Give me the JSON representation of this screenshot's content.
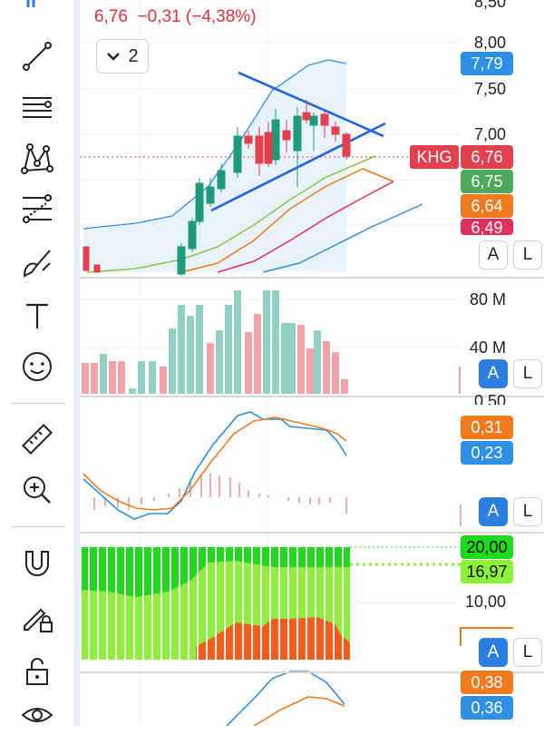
{
  "header": {
    "price": "6,76",
    "change": "−0,31",
    "change_pct": "(−4,38%)"
  },
  "legend": {
    "label": "2",
    "icon": "chevron-down-icon"
  },
  "symbol_tag": "KHG",
  "price_panel": {
    "axis": [
      "8,50",
      "8,00",
      "7,50",
      "7,00"
    ],
    "tags": [
      {
        "text": "7,79",
        "color": "#2f8fe5"
      },
      {
        "text": "6,76",
        "color": "#e2404e"
      },
      {
        "text": "6,75",
        "color": "#4ea85a"
      },
      {
        "text": "6,64",
        "color": "#f07a1e"
      },
      {
        "text": "6,49",
        "color": "#e0305a"
      }
    ]
  },
  "volume_panel": {
    "axis": [
      "80 M",
      "40 M"
    ]
  },
  "macd_panel": {
    "axis": [
      "0,50"
    ],
    "tags": [
      {
        "text": "0,31",
        "color": "#f07a1e"
      },
      {
        "text": "0,23",
        "color": "#2f8fe5"
      }
    ]
  },
  "stoch_panel": {
    "axis": [
      "10,00"
    ],
    "tags": [
      {
        "text": "20,00",
        "color": "#1ed91e"
      },
      {
        "text": "16,97",
        "color": "#8ef03a"
      }
    ]
  },
  "bottom_panel": {
    "tags": [
      {
        "text": "0,38",
        "color": "#f07a1e"
      },
      {
        "text": "0,36",
        "color": "#2f8fe5"
      }
    ]
  },
  "buttons": {
    "auto": "A",
    "log": "L"
  },
  "tools": [
    "trend-line-icon",
    "horizontal-lines-icon",
    "pattern-icon",
    "fib-icon",
    "brush-icon",
    "text-icon",
    "emoji-icon",
    "ruler-icon",
    "zoom-in-icon",
    "magnet-icon",
    "pencil-lock-icon",
    "unlock-icon",
    "eye-icon"
  ]
}
